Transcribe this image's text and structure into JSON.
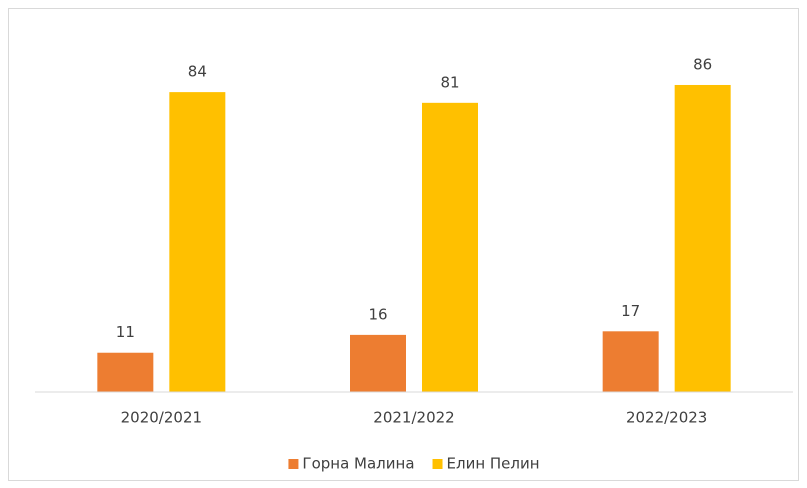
{
  "chart_data": {
    "type": "bar",
    "categories": [
      "2020/2021",
      "2021/2022",
      "2022/2023"
    ],
    "series": [
      {
        "name": "Горна Малина",
        "color": "#ed7d31",
        "values": [
          11,
          16,
          17
        ]
      },
      {
        "name": "Елин Пелин",
        "color": "#ffc000",
        "values": [
          84,
          81,
          86
        ]
      }
    ],
    "ylim": [
      0,
      100
    ],
    "legend": "bottom"
  }
}
